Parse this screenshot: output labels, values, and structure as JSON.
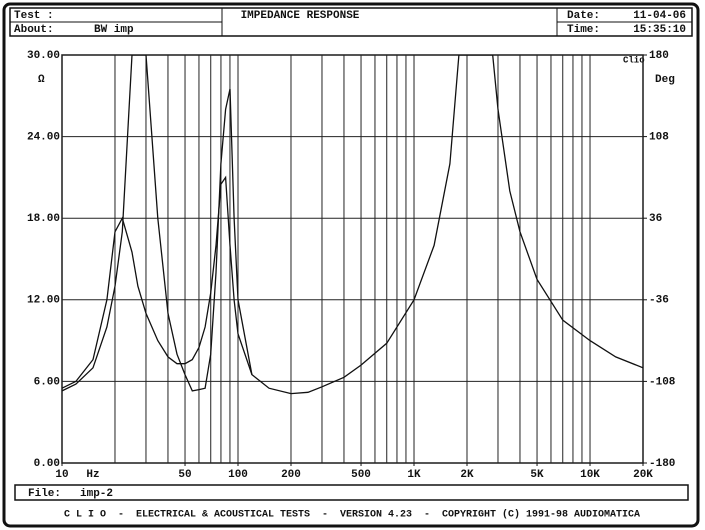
{
  "header": {
    "test_label": "Test :",
    "about_label": "About:",
    "about": "BW imp",
    "title": "IMPEDANCE RESPONSE",
    "date_label": "Date:",
    "date": "11-04-06",
    "time_label": "Time:",
    "time": "15:35:10"
  },
  "chart_data": {
    "type": "line",
    "logo": "Clio",
    "y_unit": "Ω",
    "y2_unit": "Deg",
    "x_unit": "Hz",
    "log_x": true,
    "grid": true,
    "xlim": [
      10,
      20000
    ],
    "xticks": [
      10,
      50,
      100,
      200,
      500,
      {
        "value": 1000,
        "label": "1K"
      },
      {
        "value": 2000,
        "label": "2K"
      },
      {
        "value": 5000,
        "label": "5K"
      },
      {
        "value": 10000,
        "label": "10K"
      },
      {
        "value": 20000,
        "label": "20K"
      }
    ],
    "xgrid": [
      10,
      20,
      30,
      40,
      50,
      60,
      70,
      80,
      90,
      100,
      200,
      300,
      400,
      500,
      600,
      700,
      800,
      900,
      1000,
      2000,
      3000,
      4000,
      5000,
      6000,
      7000,
      8000,
      9000,
      10000,
      20000
    ],
    "ylim": [
      0,
      30
    ],
    "yticks": [
      {
        "value": 0,
        "label": "0.00"
      },
      {
        "value": 6,
        "label": "6.00"
      },
      {
        "value": 12,
        "label": "12.00"
      },
      {
        "value": 18,
        "label": "18.00"
      },
      {
        "value": 24,
        "label": "24.00"
      },
      {
        "value": 30,
        "label": "30.00"
      }
    ],
    "y2lim": [
      -180,
      180
    ],
    "y2ticks": [
      -180,
      -108,
      -36,
      36,
      108,
      180
    ],
    "x": [
      10,
      12,
      15,
      18,
      20,
      22,
      25,
      27,
      30,
      35,
      40,
      45,
      50,
      55,
      60,
      65,
      70,
      75,
      80,
      85,
      90,
      95,
      100,
      120,
      150,
      200,
      250,
      300,
      400,
      500,
      700,
      1000,
      1300,
      1600,
      1800,
      2800,
      3000,
      3500,
      4000,
      5000,
      7000,
      10000,
      14000,
      20000
    ],
    "series": [
      {
        "color": "#111111",
        "values": [
          5.5,
          6.0,
          7.6,
          12,
          17,
          18,
          15.5,
          13,
          11,
          9,
          7.8,
          7.3,
          7.3,
          7.6,
          8.5,
          10,
          12.5,
          16,
          20.5,
          21,
          16,
          12,
          9.5,
          6.5,
          5.5,
          5.1,
          5.2,
          5.6,
          6.3,
          7.2,
          8.8,
          12,
          16,
          22,
          30,
          30,
          26,
          20,
          17,
          13.5,
          10.5,
          9,
          7.8,
          7
        ]
      },
      {
        "color": "#111111",
        "values": [
          5.3,
          5.8,
          7,
          10,
          13,
          17,
          30,
          30,
          30,
          18,
          11,
          8,
          6.5,
          5.3,
          5.4,
          5.5,
          8,
          14,
          22,
          26,
          27.5,
          18,
          12,
          6.5,
          null,
          null,
          null,
          null,
          null,
          null,
          null,
          null,
          null,
          null,
          null,
          null,
          null,
          null,
          null,
          null,
          null,
          null,
          null,
          null
        ]
      }
    ]
  },
  "footer": {
    "file_label": "File:",
    "file": "imp-2",
    "banner": "C L I O  -  ELECTRICAL & ACOUSTICAL TESTS  -  VERSION 4.23  -  COPYRIGHT (C) 1991-98 AUDIOMATICA"
  }
}
